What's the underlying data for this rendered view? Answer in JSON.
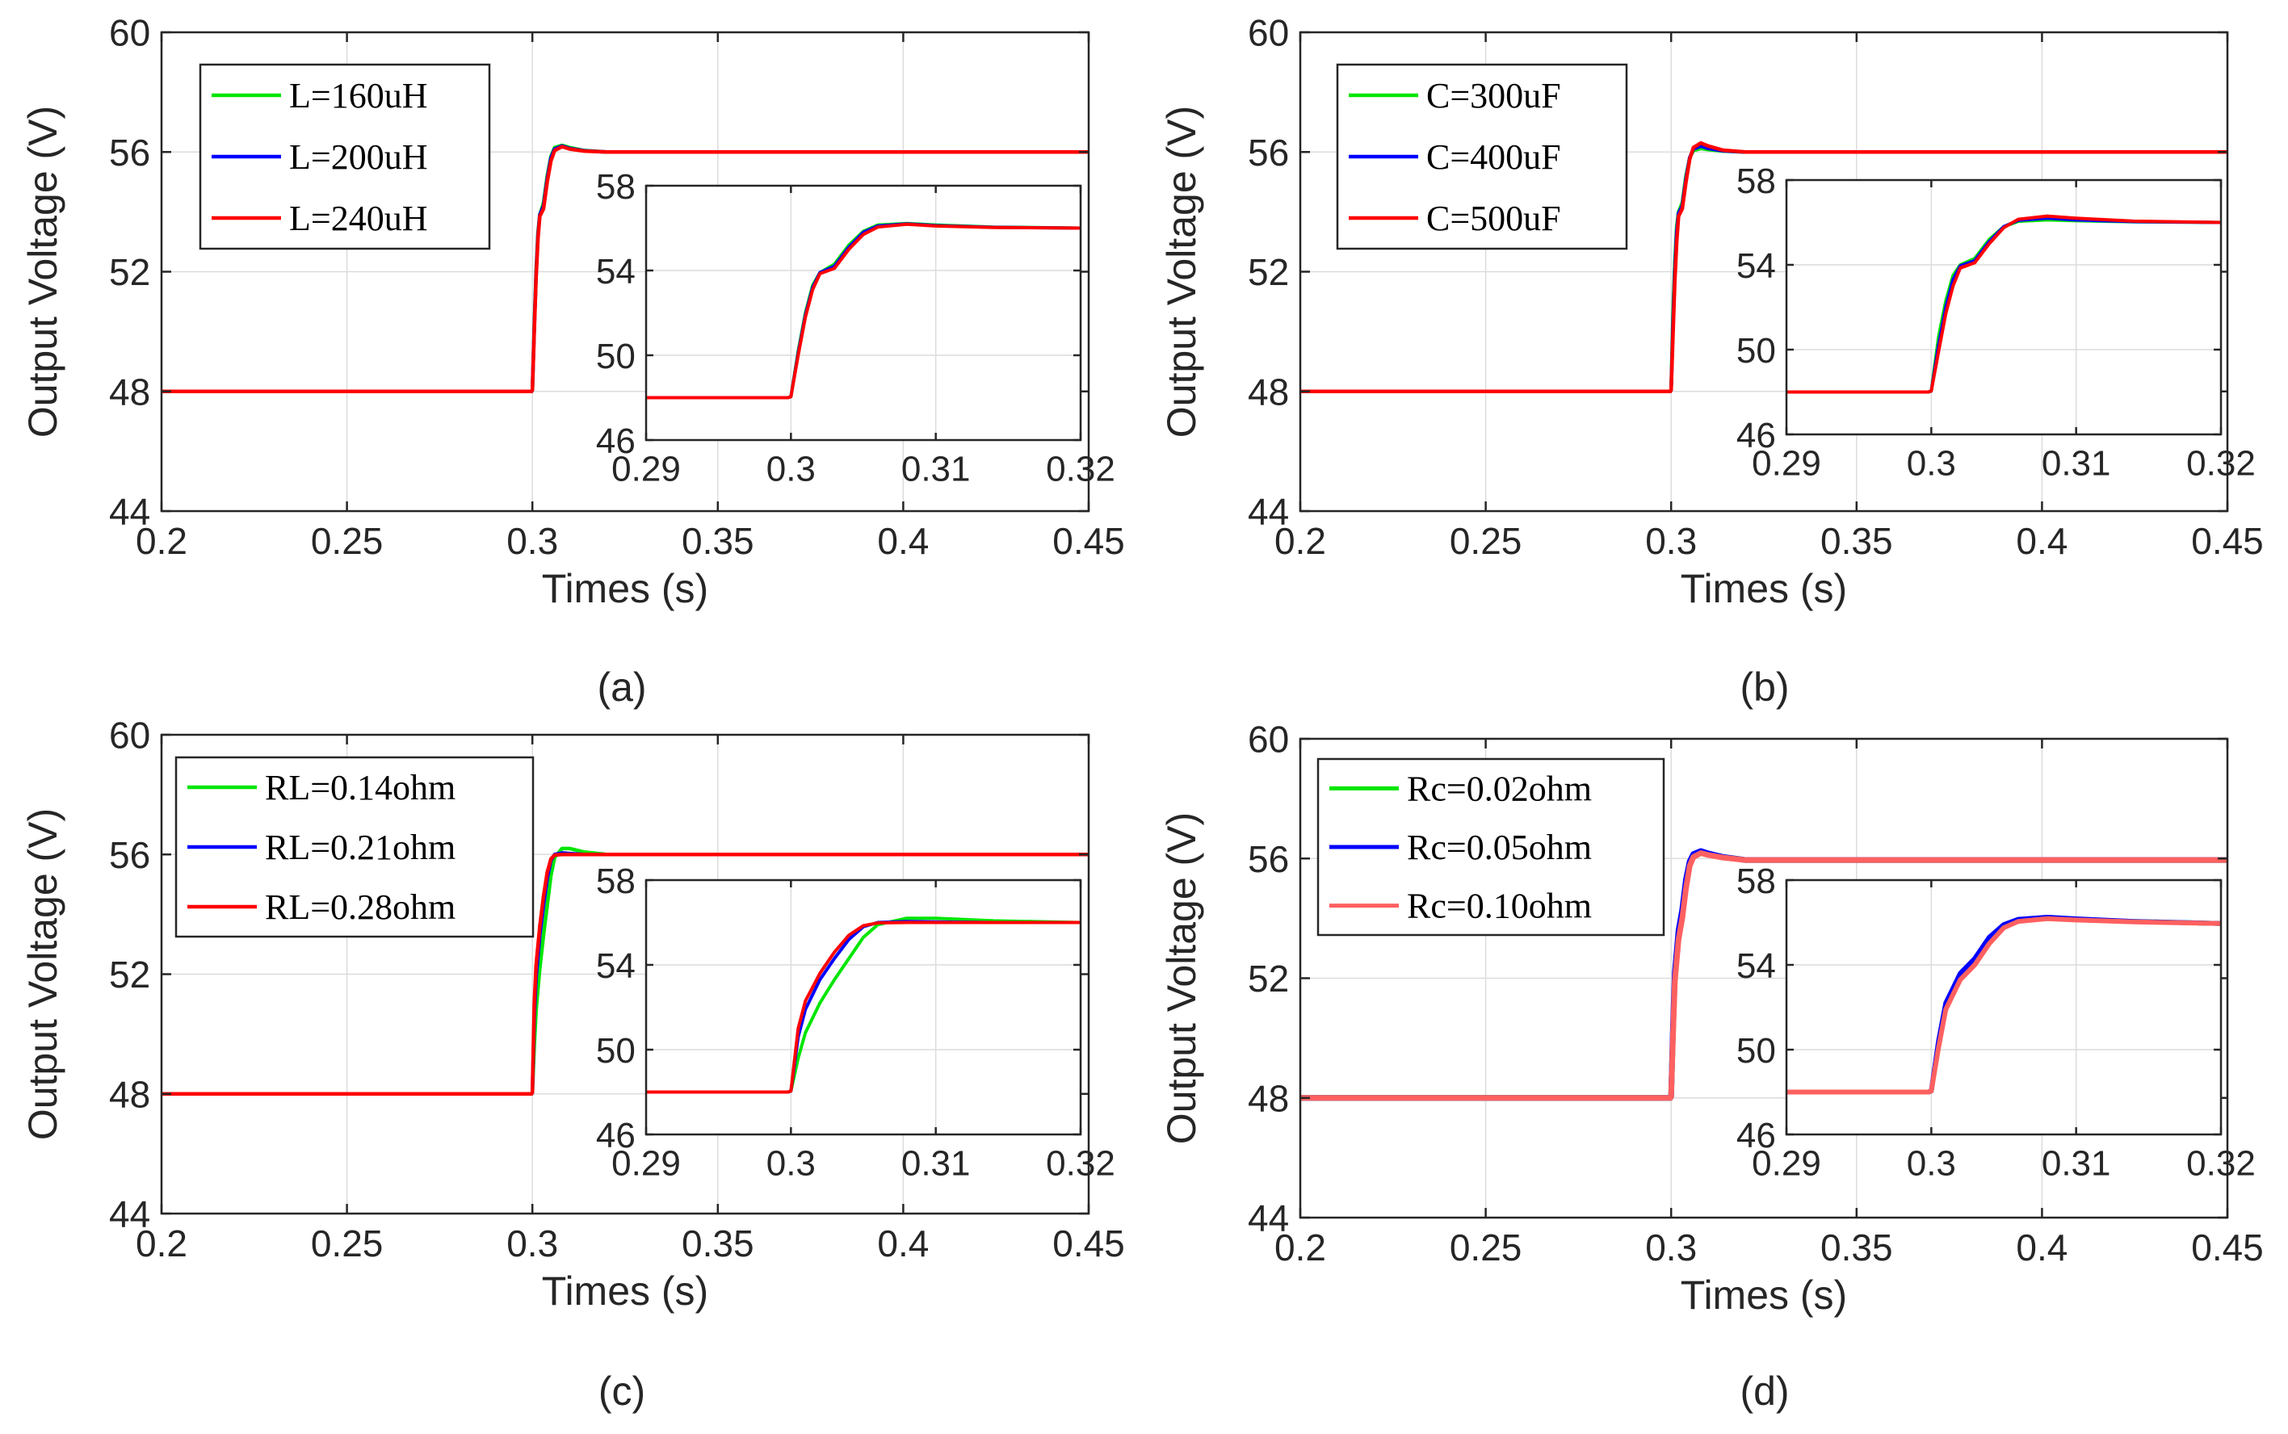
{
  "chart_data": [
    {
      "type": "line",
      "caption": "(a)",
      "xlabel": "Times (s)",
      "ylabel": "Output Voltage (V)",
      "xlim": [
        0.2,
        0.45
      ],
      "ylim": [
        44,
        60
      ],
      "xticks": [
        0.2,
        0.25,
        0.3,
        0.35,
        0.4,
        0.45
      ],
      "xtick_labels": [
        "0.2",
        "0.25",
        "0.3",
        "0.35",
        "0.4",
        "0.45"
      ],
      "yticks": [
        44,
        48,
        52,
        56,
        60
      ],
      "ytick_labels": [
        "44",
        "48",
        "52",
        "56",
        "60"
      ],
      "grid": true,
      "legend_position": "top-left",
      "series": [
        {
          "name": "L=160uH",
          "color": "#00e600",
          "points": [
            [
              0.2,
              48
            ],
            [
              0.2998,
              48
            ],
            [
              0.3,
              48.05
            ],
            [
              0.3005,
              50.2
            ],
            [
              0.301,
              52.0
            ],
            [
              0.3015,
              53.3
            ],
            [
              0.302,
              53.9
            ],
            [
              0.303,
              54.3
            ],
            [
              0.304,
              55.2
            ],
            [
              0.305,
              55.85
            ],
            [
              0.306,
              56.15
            ],
            [
              0.308,
              56.22
            ],
            [
              0.31,
              56.15
            ],
            [
              0.314,
              56.05
            ],
            [
              0.32,
              56.0
            ],
            [
              0.45,
              56.0
            ]
          ]
        },
        {
          "name": "L=200uH",
          "color": "#0000ff",
          "points": [
            [
              0.2,
              48
            ],
            [
              0.2998,
              48
            ],
            [
              0.3,
              48.05
            ],
            [
              0.3005,
              50.1
            ],
            [
              0.301,
              51.9
            ],
            [
              0.3015,
              53.2
            ],
            [
              0.302,
              53.9
            ],
            [
              0.303,
              54.2
            ],
            [
              0.304,
              55.1
            ],
            [
              0.305,
              55.8
            ],
            [
              0.306,
              56.1
            ],
            [
              0.308,
              56.2
            ],
            [
              0.31,
              56.12
            ],
            [
              0.314,
              56.04
            ],
            [
              0.32,
              56.0
            ],
            [
              0.45,
              56.0
            ]
          ]
        },
        {
          "name": "L=240uH",
          "color": "#ff0000",
          "points": [
            [
              0.2,
              48
            ],
            [
              0.2998,
              48
            ],
            [
              0.3,
              48.05
            ],
            [
              0.3005,
              50.0
            ],
            [
              0.301,
              51.8
            ],
            [
              0.3015,
              53.1
            ],
            [
              0.302,
              53.85
            ],
            [
              0.303,
              54.1
            ],
            [
              0.304,
              55.0
            ],
            [
              0.305,
              55.7
            ],
            [
              0.306,
              56.05
            ],
            [
              0.308,
              56.18
            ],
            [
              0.31,
              56.1
            ],
            [
              0.314,
              56.03
            ],
            [
              0.32,
              56.0
            ],
            [
              0.45,
              56.0
            ]
          ]
        }
      ],
      "inset": {
        "xlim": [
          0.29,
          0.32
        ],
        "ylim": [
          46,
          58
        ],
        "xticks": [
          0.29,
          0.3,
          0.31,
          0.32
        ],
        "xtick_labels": [
          "0.29",
          "0.3",
          "0.31",
          "0.32"
        ],
        "yticks": [
          46,
          50,
          54,
          58
        ],
        "ytick_labels": [
          "46",
          "50",
          "54",
          "58"
        ],
        "grid": true
      }
    },
    {
      "type": "line",
      "caption": "(b)",
      "xlabel": "Times (s)",
      "ylabel": "Output Voltage (V)",
      "xlim": [
        0.2,
        0.45
      ],
      "ylim": [
        44,
        60
      ],
      "xticks": [
        0.2,
        0.25,
        0.3,
        0.35,
        0.4,
        0.45
      ],
      "xtick_labels": [
        "0.2",
        "0.25",
        "0.3",
        "0.35",
        "0.4",
        "0.45"
      ],
      "yticks": [
        44,
        48,
        52,
        56,
        60
      ],
      "ytick_labels": [
        "44",
        "48",
        "52",
        "56",
        "60"
      ],
      "grid": true,
      "legend_position": "top-left",
      "series": [
        {
          "name": "C=300uF",
          "color": "#00e600",
          "points": [
            [
              0.2,
              48
            ],
            [
              0.2998,
              48
            ],
            [
              0.3,
              48.05
            ],
            [
              0.3005,
              50.6
            ],
            [
              0.301,
              52.3
            ],
            [
              0.3015,
              53.5
            ],
            [
              0.302,
              54.0
            ],
            [
              0.303,
              54.3
            ],
            [
              0.304,
              55.2
            ],
            [
              0.305,
              55.8
            ],
            [
              0.306,
              56.05
            ],
            [
              0.308,
              56.12
            ],
            [
              0.31,
              56.08
            ],
            [
              0.314,
              56.03
            ],
            [
              0.32,
              56.0
            ],
            [
              0.45,
              56.0
            ]
          ]
        },
        {
          "name": "C=400uF",
          "color": "#0000ff",
          "points": [
            [
              0.2,
              48
            ],
            [
              0.2998,
              48
            ],
            [
              0.3,
              48.05
            ],
            [
              0.3005,
              50.2
            ],
            [
              0.301,
              52.0
            ],
            [
              0.3015,
              53.3
            ],
            [
              0.302,
              53.95
            ],
            [
              0.303,
              54.2
            ],
            [
              0.304,
              55.1
            ],
            [
              0.305,
              55.8
            ],
            [
              0.306,
              56.1
            ],
            [
              0.308,
              56.2
            ],
            [
              0.31,
              56.12
            ],
            [
              0.314,
              56.04
            ],
            [
              0.32,
              56.0
            ],
            [
              0.45,
              56.0
            ]
          ]
        },
        {
          "name": "C=500uF",
          "color": "#ff0000",
          "points": [
            [
              0.2,
              48
            ],
            [
              0.2998,
              48
            ],
            [
              0.3,
              48.05
            ],
            [
              0.3005,
              49.9
            ],
            [
              0.301,
              51.7
            ],
            [
              0.3015,
              53.0
            ],
            [
              0.302,
              53.85
            ],
            [
              0.303,
              54.1
            ],
            [
              0.304,
              55.0
            ],
            [
              0.305,
              55.75
            ],
            [
              0.306,
              56.15
            ],
            [
              0.308,
              56.3
            ],
            [
              0.31,
              56.2
            ],
            [
              0.314,
              56.06
            ],
            [
              0.32,
              56.0
            ],
            [
              0.45,
              56.0
            ]
          ]
        }
      ],
      "inset": {
        "xlim": [
          0.29,
          0.32
        ],
        "ylim": [
          46,
          58
        ],
        "xticks": [
          0.29,
          0.3,
          0.31,
          0.32
        ],
        "xtick_labels": [
          "0.29",
          "0.3",
          "0.31",
          "0.32"
        ],
        "yticks": [
          46,
          50,
          54,
          58
        ],
        "ytick_labels": [
          "46",
          "50",
          "54",
          "58"
        ],
        "grid": true
      }
    },
    {
      "type": "line",
      "caption": "(c)",
      "xlabel": "Times (s)",
      "ylabel": "Output Voltage (V)",
      "xlim": [
        0.2,
        0.45
      ],
      "ylim": [
        44,
        60
      ],
      "xticks": [
        0.2,
        0.25,
        0.3,
        0.35,
        0.4,
        0.45
      ],
      "xtick_labels": [
        "0.2",
        "0.25",
        "0.3",
        "0.35",
        "0.4",
        "0.45"
      ],
      "yticks": [
        44,
        48,
        52,
        56,
        60
      ],
      "ytick_labels": [
        "44",
        "48",
        "52",
        "56",
        "60"
      ],
      "grid": true,
      "legend_position": "top-left",
      "series": [
        {
          "name": "RL=0.14ohm",
          "color": "#00e600",
          "points": [
            [
              0.2,
              48
            ],
            [
              0.2998,
              48
            ],
            [
              0.3,
              48.05
            ],
            [
              0.3005,
              49.6
            ],
            [
              0.301,
              50.8
            ],
            [
              0.302,
              52.2
            ],
            [
              0.303,
              53.3
            ],
            [
              0.304,
              54.3
            ],
            [
              0.305,
              55.3
            ],
            [
              0.306,
              55.9
            ],
            [
              0.308,
              56.2
            ],
            [
              0.31,
              56.2
            ],
            [
              0.314,
              56.08
            ],
            [
              0.32,
              56.0
            ],
            [
              0.45,
              56.0
            ]
          ]
        },
        {
          "name": "RL=0.21ohm",
          "color": "#0000ff",
          "points": [
            [
              0.2,
              48
            ],
            [
              0.2998,
              48
            ],
            [
              0.3,
              48.05
            ],
            [
              0.3005,
              50.6
            ],
            [
              0.301,
              51.9
            ],
            [
              0.302,
              53.3
            ],
            [
              0.303,
              54.3
            ],
            [
              0.304,
              55.2
            ],
            [
              0.305,
              55.8
            ],
            [
              0.306,
              56.0
            ],
            [
              0.308,
              56.05
            ],
            [
              0.31,
              56.03
            ],
            [
              0.314,
              56.0
            ],
            [
              0.32,
              56.0
            ],
            [
              0.45,
              56.0
            ]
          ]
        },
        {
          "name": "RL=0.28ohm",
          "color": "#ff0000",
          "points": [
            [
              0.2,
              48
            ],
            [
              0.2998,
              48
            ],
            [
              0.3,
              48.05
            ],
            [
              0.3005,
              51.0
            ],
            [
              0.301,
              52.3
            ],
            [
              0.302,
              53.6
            ],
            [
              0.303,
              54.6
            ],
            [
              0.304,
              55.4
            ],
            [
              0.305,
              55.85
            ],
            [
              0.306,
              55.98
            ],
            [
              0.308,
              56.0
            ],
            [
              0.31,
              56.0
            ],
            [
              0.314,
              56.0
            ],
            [
              0.32,
              56.0
            ],
            [
              0.45,
              56.0
            ]
          ]
        }
      ],
      "inset": {
        "xlim": [
          0.29,
          0.32
        ],
        "ylim": [
          46,
          58
        ],
        "xticks": [
          0.29,
          0.3,
          0.31,
          0.32
        ],
        "xtick_labels": [
          "0.29",
          "0.3",
          "0.31",
          "0.32"
        ],
        "yticks": [
          46,
          50,
          54,
          58
        ],
        "ytick_labels": [
          "46",
          "50",
          "54",
          "58"
        ],
        "grid": true
      }
    },
    {
      "type": "line",
      "caption": "(d)",
      "xlabel": "Times (s)",
      "ylabel": "Output Voltage (V)",
      "xlim": [
        0.2,
        0.45
      ],
      "ylim": [
        44,
        60
      ],
      "xticks": [
        0.2,
        0.25,
        0.3,
        0.35,
        0.4,
        0.45
      ],
      "xtick_labels": [
        "0.2",
        "0.25",
        "0.3",
        "0.35",
        "0.4",
        "0.45"
      ],
      "yticks": [
        44,
        48,
        52,
        56,
        60
      ],
      "ytick_labels": [
        "44",
        "48",
        "52",
        "56",
        "60"
      ],
      "grid": true,
      "legend_position": "top-left",
      "series": [
        {
          "name": "Rc=0.02ohm",
          "color": "#00e600",
          "points": [
            [
              0.2,
              48
            ],
            [
              0.2998,
              48
            ],
            [
              0.3,
              48.05
            ],
            [
              0.3005,
              50.2
            ],
            [
              0.301,
              52.0
            ],
            [
              0.302,
              53.4
            ],
            [
              0.303,
              54.1
            ],
            [
              0.304,
              55.1
            ],
            [
              0.305,
              55.8
            ],
            [
              0.306,
              56.1
            ],
            [
              0.308,
              56.2
            ],
            [
              0.31,
              56.15
            ],
            [
              0.314,
              56.05
            ],
            [
              0.32,
              55.95
            ],
            [
              0.45,
              55.95
            ]
          ]
        },
        {
          "name": "Rc=0.05ohm",
          "color": "#0000ff",
          "points": [
            [
              0.2,
              48
            ],
            [
              0.2998,
              48
            ],
            [
              0.3,
              48.05
            ],
            [
              0.3005,
              50.4
            ],
            [
              0.301,
              52.2
            ],
            [
              0.302,
              53.6
            ],
            [
              0.303,
              54.3
            ],
            [
              0.304,
              55.3
            ],
            [
              0.305,
              55.9
            ],
            [
              0.306,
              56.15
            ],
            [
              0.308,
              56.25
            ],
            [
              0.31,
              56.17
            ],
            [
              0.314,
              56.05
            ],
            [
              0.32,
              55.95
            ],
            [
              0.45,
              55.95
            ]
          ]
        },
        {
          "name": "Rc=0.10ohm",
          "color": "#ff6060",
          "points": [
            [
              0.2,
              48
            ],
            [
              0.2998,
              48
            ],
            [
              0.3,
              48.05
            ],
            [
              0.3005,
              50.1
            ],
            [
              0.301,
              51.9
            ],
            [
              0.302,
              53.3
            ],
            [
              0.303,
              54.0
            ],
            [
              0.304,
              55.0
            ],
            [
              0.305,
              55.75
            ],
            [
              0.306,
              56.05
            ],
            [
              0.308,
              56.18
            ],
            [
              0.31,
              56.12
            ],
            [
              0.314,
              56.03
            ],
            [
              0.32,
              55.95
            ],
            [
              0.45,
              55.95
            ]
          ]
        }
      ],
      "inset": {
        "xlim": [
          0.29,
          0.32
        ],
        "ylim": [
          46,
          58
        ],
        "xticks": [
          0.29,
          0.3,
          0.31,
          0.32
        ],
        "xtick_labels": [
          "0.29",
          "0.3",
          "0.31",
          "0.32"
        ],
        "yticks": [
          46,
          50,
          54,
          58
        ],
        "ytick_labels": [
          "46",
          "50",
          "54",
          "58"
        ],
        "grid": true
      }
    }
  ]
}
